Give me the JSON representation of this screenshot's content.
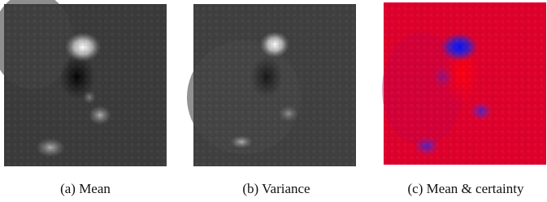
{
  "figure": {
    "panels": [
      {
        "caption": "(a) Mean"
      },
      {
        "caption": "(b) Variance"
      },
      {
        "caption": "(c) Mean & certainty"
      }
    ]
  }
}
